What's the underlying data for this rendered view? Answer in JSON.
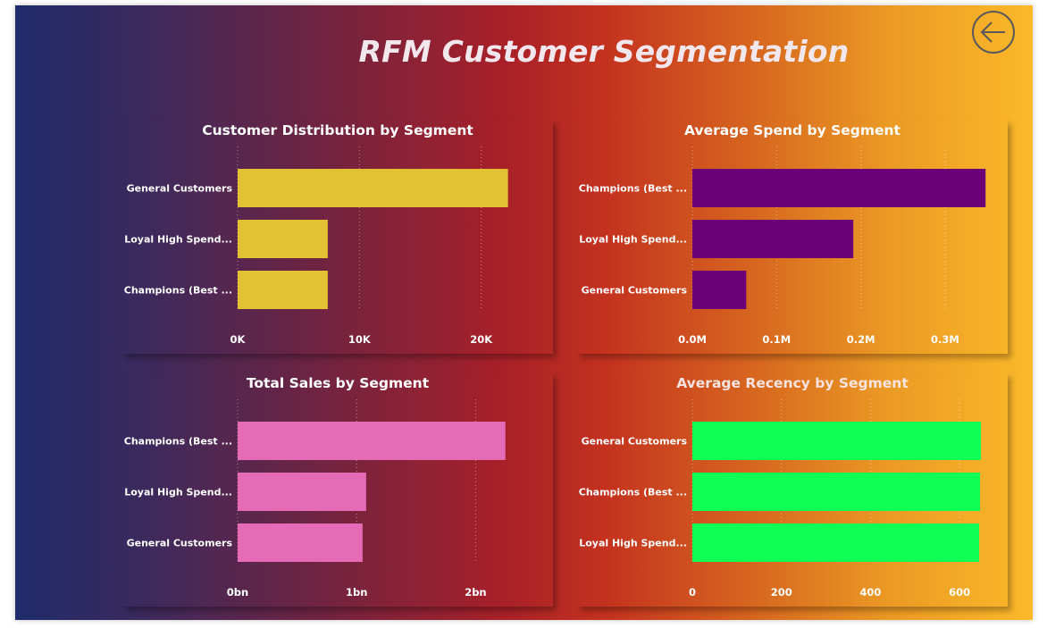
{
  "page": {
    "title": "RFM Customer Segmentation",
    "back_icon": "arrow-left-icon"
  },
  "chart_data": [
    {
      "type": "bar",
      "orientation": "horizontal",
      "title": "Customer Distribution by Segment",
      "categories": [
        "General Customers",
        "Loyal High Spend...",
        "Champions (Best ..."
      ],
      "values": [
        22200,
        7400,
        7400
      ],
      "xlim": [
        0,
        25600
      ],
      "x_ticks": [
        0,
        10000,
        20000
      ],
      "x_tick_labels": [
        "0K",
        "10K",
        "20K"
      ],
      "bar_color": "#e2c232",
      "grid": true
    },
    {
      "type": "bar",
      "orientation": "horizontal",
      "title": "Average Spend by Segment",
      "categories": [
        "Champions (Best ...",
        "Loyal High Spend...",
        "General Customers"
      ],
      "values": [
        0.348,
        0.191,
        0.064
      ],
      "xlim": [
        0,
        0.37
      ],
      "x_ticks": [
        0,
        0.1,
        0.2,
        0.3
      ],
      "x_tick_labels": [
        "0.0M",
        "0.1M",
        "0.2M",
        "0.3M"
      ],
      "bar_color": "#6c0076",
      "grid": true
    },
    {
      "type": "bar",
      "orientation": "horizontal",
      "title": "Total Sales by Segment",
      "categories": [
        "Champions (Best ...",
        "Loyal High Spend...",
        "General Customers"
      ],
      "values": [
        2.25,
        1.08,
        1.05
      ],
      "xlim": [
        0,
        2.62
      ],
      "x_ticks": [
        0,
        1,
        2
      ],
      "x_tick_labels": [
        "0bn",
        "1bn",
        "2bn"
      ],
      "bar_color": "#e56bb7",
      "grid": true
    },
    {
      "type": "bar",
      "orientation": "horizontal",
      "title": "Average Recency by Segment",
      "categories": [
        "General Customers",
        "Champions (Best ...",
        "Loyal High Spend..."
      ],
      "values": [
        648,
        646,
        644
      ],
      "xlim": [
        0,
        700
      ],
      "x_ticks": [
        0,
        200,
        400,
        600
      ],
      "x_tick_labels": [
        "0",
        "200",
        "400",
        "600"
      ],
      "bar_color": "#10ff55",
      "title_color": "#f7e3e0",
      "grid": true
    }
  ]
}
